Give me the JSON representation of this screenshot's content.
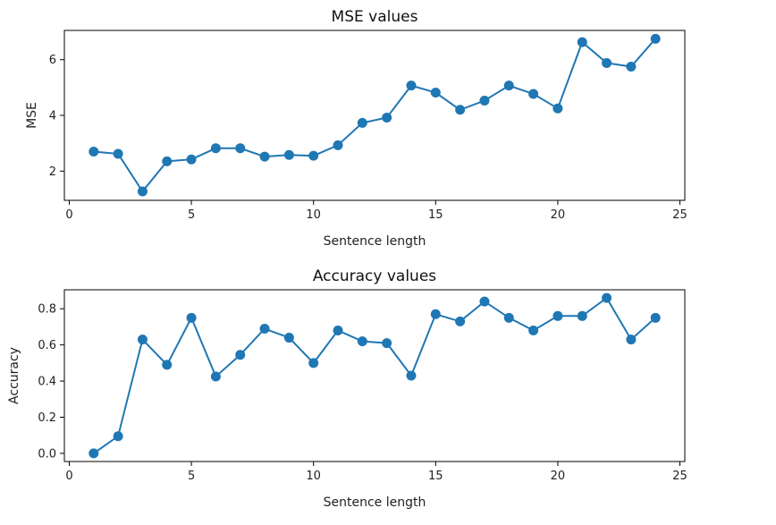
{
  "chart_data": [
    {
      "type": "line",
      "title": "MSE values",
      "xlabel": "Sentence length",
      "ylabel": "MSE",
      "xlim": [
        -0.2,
        25.2
      ],
      "ylim": [
        0.95,
        7.05
      ],
      "xticks": [
        0,
        5,
        10,
        15,
        20,
        25
      ],
      "yticks": [
        2,
        4,
        6
      ],
      "ytick_labels": [
        "2",
        "4",
        "6"
      ],
      "grid": false,
      "color": "#1f77b4",
      "marker": "circle",
      "x": [
        1,
        2,
        3,
        4,
        5,
        6,
        7,
        8,
        9,
        10,
        11,
        12,
        13,
        14,
        15,
        16,
        17,
        18,
        19,
        20,
        21,
        22,
        23,
        24
      ],
      "y": [
        2.7,
        2.62,
        1.27,
        2.35,
        2.42,
        2.82,
        2.82,
        2.52,
        2.58,
        2.55,
        2.93,
        3.73,
        3.92,
        5.07,
        4.82,
        4.2,
        4.53,
        5.07,
        4.77,
        4.25,
        6.63,
        5.88,
        5.75,
        6.75
      ]
    },
    {
      "type": "line",
      "title": "Accuracy values",
      "xlabel": "Sentence length",
      "ylabel": "Accuracy",
      "xlim": [
        -0.2,
        25.2
      ],
      "ylim": [
        -0.045,
        0.905
      ],
      "xticks": [
        0,
        5,
        10,
        15,
        20,
        25
      ],
      "yticks": [
        0.0,
        0.2,
        0.4,
        0.6,
        0.8
      ],
      "ytick_labels": [
        "0.0",
        "0.2",
        "0.4",
        "0.6",
        "0.8"
      ],
      "grid": false,
      "color": "#1f77b4",
      "marker": "circle",
      "x": [
        1,
        2,
        3,
        4,
        5,
        6,
        7,
        8,
        9,
        10,
        11,
        12,
        13,
        14,
        15,
        16,
        17,
        18,
        19,
        20,
        21,
        22,
        23,
        24
      ],
      "y": [
        0.0,
        0.095,
        0.63,
        0.49,
        0.75,
        0.425,
        0.545,
        0.69,
        0.64,
        0.5,
        0.68,
        0.62,
        0.61,
        0.43,
        0.77,
        0.73,
        0.84,
        0.75,
        0.68,
        0.76,
        0.76,
        0.86,
        0.63,
        0.75
      ]
    }
  ]
}
